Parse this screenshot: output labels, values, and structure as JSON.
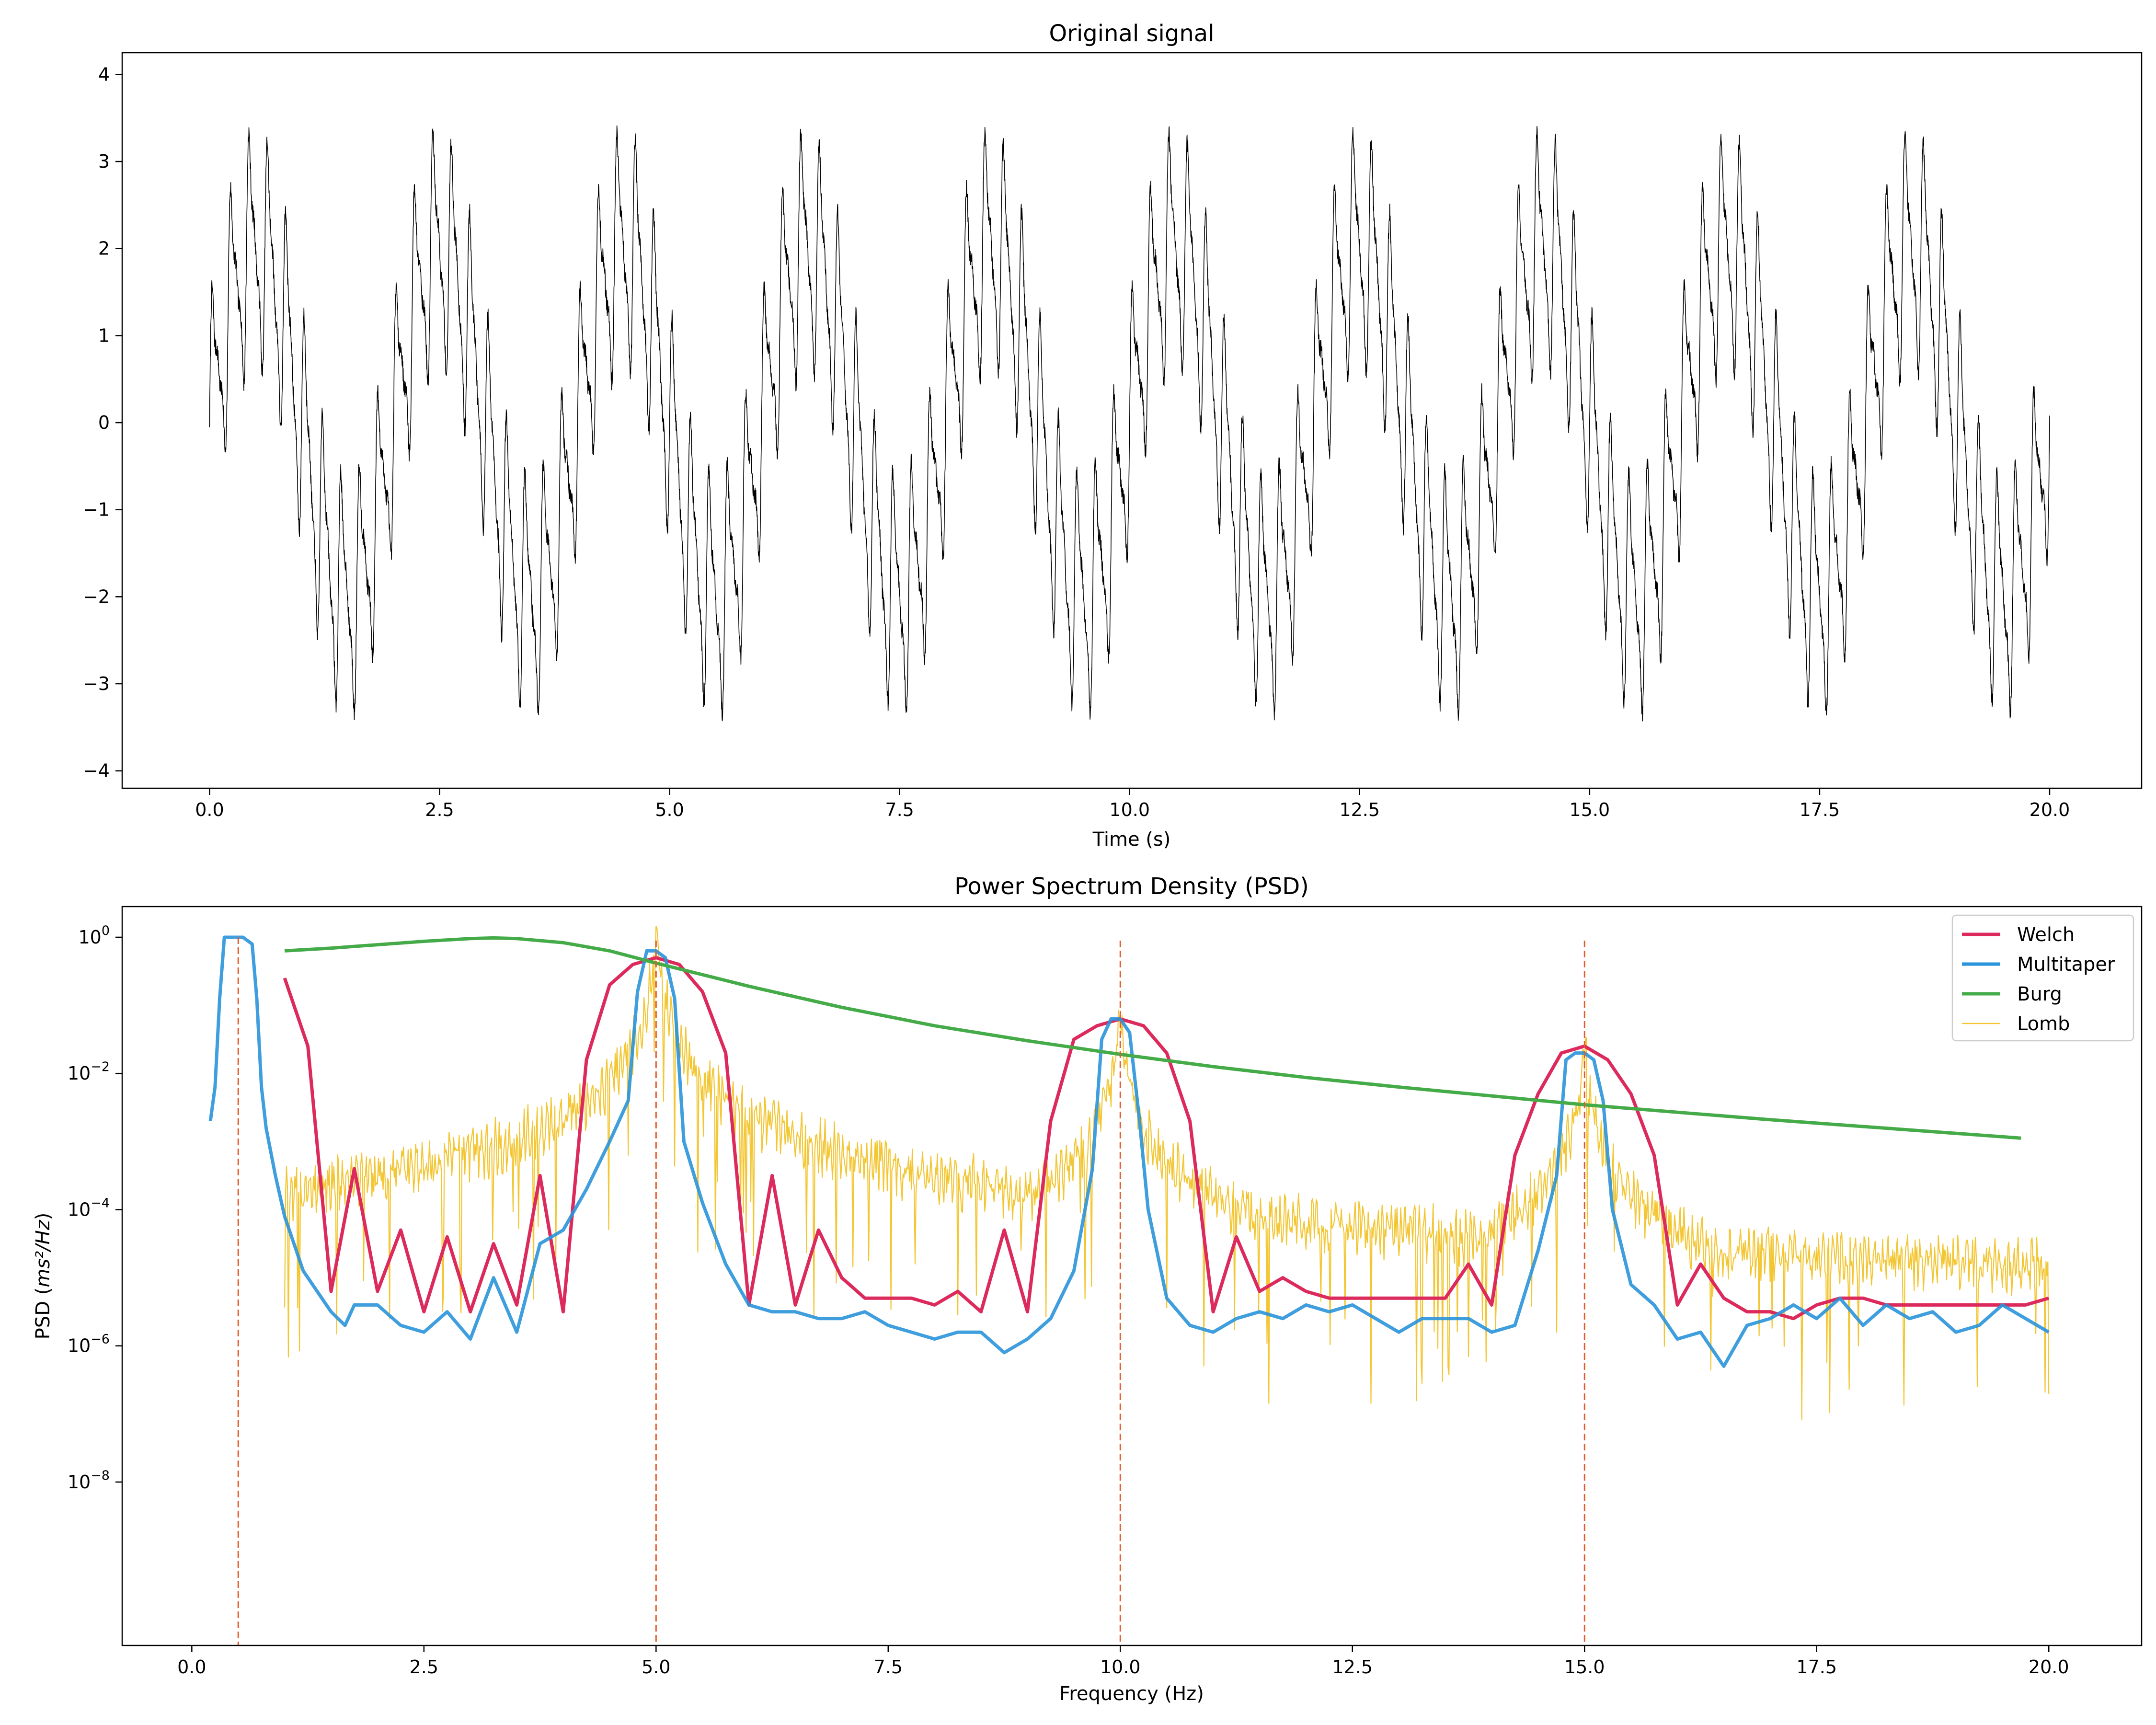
{
  "chart_data": [
    {
      "type": "line",
      "title": "Original signal",
      "xlabel": "Time (s)",
      "ylabel": "",
      "xlim": [
        -0.95,
        21.0
      ],
      "ylim": [
        -4.2,
        4.25
      ],
      "xticks": [
        0.0,
        2.5,
        5.0,
        7.5,
        10.0,
        12.5,
        15.0,
        17.5,
        20.0
      ],
      "xtick_labels": [
        "0.0",
        "2.5",
        "5.0",
        "7.5",
        "10.0",
        "12.5",
        "15.0",
        "17.5",
        "20.0"
      ],
      "yticks": [
        4,
        3,
        2,
        1,
        0,
        -1,
        -2,
        -3,
        -4
      ],
      "ytick_labels": [
        "4",
        "3",
        "2",
        "1",
        "0",
        "−1",
        "−2",
        "−3",
        "−4"
      ],
      "grid": false,
      "series": [
        {
          "color": "#000000",
          "signal": {
            "t_start": 0,
            "t_end": 20,
            "components": [
              {
                "amplitude": 2.0,
                "frequency_hz": 0.5
              },
              {
                "amplitude": 1.0,
                "frequency_hz": 5.0
              },
              {
                "amplitude": 0.5,
                "frequency_hz": 10.0
              },
              {
                "amplitude": 0.25,
                "frequency_hz": 15.0
              }
            ],
            "noise": 0.1
          }
        }
      ]
    },
    {
      "type": "line",
      "title": "Power Spectrum Density (PSD)",
      "xlabel": "Frequency (Hz)",
      "ylabel_prefix": "PSD (",
      "ylabel_math": "ms²/Hz",
      "ylabel_suffix": ")",
      "xlim": [
        -0.75,
        21.0
      ],
      "ylim_log10": [
        -10.4,
        0.45
      ],
      "y_scale": "log",
      "xticks": [
        0.0,
        2.5,
        5.0,
        7.5,
        10.0,
        12.5,
        15.0,
        17.5,
        20.0
      ],
      "xtick_labels": [
        "0.0",
        "2.5",
        "5.0",
        "7.5",
        "10.0",
        "12.5",
        "15.0",
        "17.5",
        "20.0"
      ],
      "yticks_log10": [
        0,
        -2,
        -4,
        -6,
        -8
      ],
      "ytick_bases": [
        "10",
        "10",
        "10",
        "10",
        "10"
      ],
      "ytick_exponents": [
        "0",
        "−2",
        "−4",
        "−6",
        "−8"
      ],
      "grid": false,
      "legend": "top-right",
      "reference_lines": {
        "x": [
          0.5,
          5.0,
          10.0,
          15.0
        ],
        "color": "#e8592a",
        "style": "dashed"
      },
      "series": [
        {
          "name": "Welch",
          "color": "#dc2a5c",
          "x": [
            1.0,
            1.25,
            1.5,
            1.75,
            2.0,
            2.25,
            2.5,
            2.75,
            3.0,
            3.25,
            3.5,
            3.75,
            4.0,
            4.25,
            4.5,
            4.75,
            5.0,
            5.25,
            5.5,
            5.75,
            6.0,
            6.25,
            6.5,
            6.75,
            7.0,
            7.25,
            7.5,
            7.75,
            8.0,
            8.25,
            8.5,
            8.75,
            9.0,
            9.25,
            9.5,
            9.75,
            10.0,
            10.25,
            10.5,
            10.75,
            11.0,
            11.25,
            11.5,
            11.75,
            12.0,
            12.25,
            12.5,
            12.75,
            13.0,
            13.25,
            13.5,
            13.75,
            14.0,
            14.25,
            14.5,
            14.75,
            15.0,
            15.25,
            15.5,
            15.75,
            16.0,
            16.25,
            16.5,
            16.75,
            17.0,
            17.25,
            17.5,
            17.75,
            18.0,
            18.25,
            18.5,
            18.75,
            19.0,
            19.25,
            19.5,
            19.75,
            20.0
          ],
          "y_log10": [
            -0.6,
            -1.6,
            -5.2,
            -3.4,
            -5.2,
            -4.3,
            -5.5,
            -4.4,
            -5.5,
            -4.5,
            -5.4,
            -3.5,
            -5.5,
            -1.8,
            -0.7,
            -0.4,
            -0.3,
            -0.4,
            -0.8,
            -1.7,
            -5.4,
            -3.5,
            -5.4,
            -4.3,
            -5.0,
            -5.3,
            -5.3,
            -5.3,
            -5.4,
            -5.2,
            -5.5,
            -4.3,
            -5.5,
            -2.7,
            -1.5,
            -1.3,
            -1.2,
            -1.3,
            -1.7,
            -2.7,
            -5.5,
            -4.4,
            -5.2,
            -5.0,
            -5.2,
            -5.3,
            -5.3,
            -5.3,
            -5.3,
            -5.3,
            -5.3,
            -4.8,
            -5.4,
            -3.2,
            -2.3,
            -1.7,
            -1.6,
            -1.8,
            -2.3,
            -3.2,
            -5.4,
            -4.8,
            -5.3,
            -5.5,
            -5.5,
            -5.6,
            -5.4,
            -5.3,
            -5.3,
            -5.4,
            -5.4,
            -5.4,
            -5.4,
            -5.4,
            -5.4,
            -5.4,
            -5.3
          ]
        },
        {
          "name": "Multitaper",
          "color": "#2a93d9",
          "x": [
            0.2,
            0.25,
            0.3,
            0.35,
            0.4,
            0.55,
            0.65,
            0.7,
            0.75,
            0.8,
            0.9,
            1.0,
            1.2,
            1.5,
            1.65,
            1.75,
            2.0,
            2.25,
            2.5,
            2.75,
            3.0,
            3.25,
            3.5,
            3.75,
            4.0,
            4.25,
            4.5,
            4.7,
            4.8,
            4.9,
            5.0,
            5.1,
            5.2,
            5.3,
            5.5,
            5.75,
            6.0,
            6.25,
            6.5,
            6.75,
            7.0,
            7.25,
            7.5,
            7.75,
            8.0,
            8.25,
            8.5,
            8.75,
            9.0,
            9.25,
            9.5,
            9.7,
            9.8,
            9.9,
            10.0,
            10.1,
            10.2,
            10.3,
            10.5,
            10.75,
            11.0,
            11.25,
            11.5,
            11.75,
            12.0,
            12.25,
            12.5,
            12.75,
            13.0,
            13.25,
            13.5,
            13.75,
            14.0,
            14.25,
            14.5,
            14.7,
            14.8,
            14.9,
            15.0,
            15.1,
            15.2,
            15.3,
            15.5,
            15.75,
            16.0,
            16.25,
            16.5,
            16.75,
            17.0,
            17.25,
            17.5,
            17.75,
            18.0,
            18.25,
            18.5,
            18.75,
            19.0,
            19.25,
            19.5,
            19.75,
            20.0
          ],
          "y_log10": [
            -2.7,
            -2.2,
            -0.9,
            0.0,
            0.0,
            0.0,
            -0.1,
            -0.9,
            -2.2,
            -2.8,
            -3.5,
            -4.1,
            -4.9,
            -5.5,
            -5.7,
            -5.4,
            -5.4,
            -5.7,
            -5.8,
            -5.5,
            -5.9,
            -5.0,
            -5.8,
            -4.5,
            -4.3,
            -3.7,
            -3.0,
            -2.4,
            -0.8,
            -0.2,
            -0.2,
            -0.3,
            -0.9,
            -3.0,
            -3.9,
            -4.8,
            -5.4,
            -5.5,
            -5.5,
            -5.6,
            -5.6,
            -5.5,
            -5.7,
            -5.8,
            -5.9,
            -5.8,
            -5.8,
            -6.1,
            -5.9,
            -5.6,
            -4.9,
            -3.4,
            -1.5,
            -1.2,
            -1.2,
            -1.4,
            -2.6,
            -4.0,
            -5.3,
            -5.7,
            -5.8,
            -5.6,
            -5.5,
            -5.6,
            -5.4,
            -5.5,
            -5.4,
            -5.6,
            -5.8,
            -5.6,
            -5.6,
            -5.6,
            -5.8,
            -5.7,
            -4.6,
            -3.5,
            -1.8,
            -1.7,
            -1.7,
            -1.8,
            -2.4,
            -4.0,
            -5.1,
            -5.4,
            -5.9,
            -5.8,
            -6.3,
            -5.7,
            -5.6,
            -5.4,
            -5.6,
            -5.3,
            -5.7,
            -5.4,
            -5.6,
            -5.5,
            -5.8,
            -5.7,
            -5.4,
            -5.6,
            -5.8
          ]
        },
        {
          "name": "Burg",
          "color": "#45ab48",
          "x": [
            1.0,
            1.5,
            2.0,
            2.5,
            3.0,
            3.25,
            3.5,
            4.0,
            4.5,
            5.0,
            5.5,
            6.0,
            7.0,
            8.0,
            9.0,
            10.0,
            11.0,
            12.0,
            13.0,
            14.0,
            15.0,
            16.0,
            17.0,
            18.0,
            19.0,
            19.7
          ],
          "y_log10": [
            -0.2,
            -0.16,
            -0.11,
            -0.06,
            -0.02,
            -0.01,
            -0.02,
            -0.08,
            -0.2,
            -0.38,
            -0.55,
            -0.72,
            -1.03,
            -1.3,
            -1.52,
            -1.72,
            -1.9,
            -2.06,
            -2.2,
            -2.33,
            -2.46,
            -2.57,
            -2.68,
            -2.78,
            -2.88,
            -2.95
          ]
        },
        {
          "name": "Lomb",
          "color": "#f3c634",
          "x_range": [
            1.0,
            20.0
          ],
          "peaks_hz": [
            5.0,
            10.0,
            15.0
          ],
          "peak_log10": [
            0.0,
            -1.2,
            -1.7
          ],
          "floor_log10": -6.5
        }
      ]
    }
  ]
}
